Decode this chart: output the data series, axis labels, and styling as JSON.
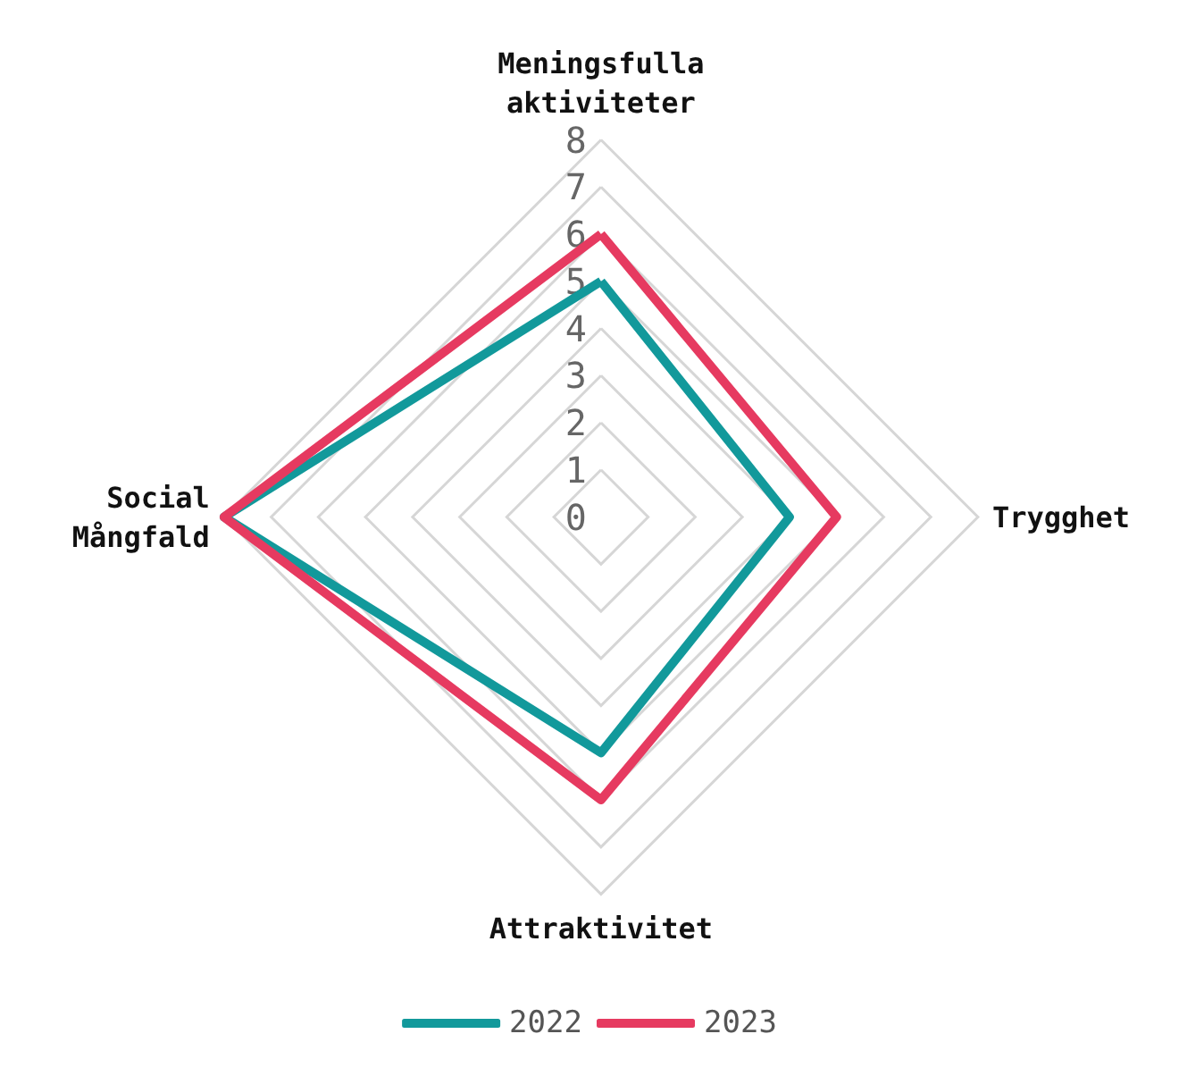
{
  "chart_data": {
    "type": "radar",
    "categories": [
      "Meningsfulla\naktiviteter",
      "Trygghet",
      "Attraktivitet",
      "Social\nMångfald"
    ],
    "series": [
      {
        "name": "2022",
        "color": "#12999b",
        "values": [
          5,
          4,
          5,
          8
        ]
      },
      {
        "name": "2023",
        "color": "#e63a60",
        "values": [
          6,
          5,
          6,
          8
        ]
      }
    ],
    "ylim": [
      0,
      8
    ],
    "yticks": [
      0,
      1,
      2,
      3,
      4,
      5,
      6,
      7,
      8
    ],
    "grid": true,
    "legend": "bottom",
    "marker": "none"
  }
}
